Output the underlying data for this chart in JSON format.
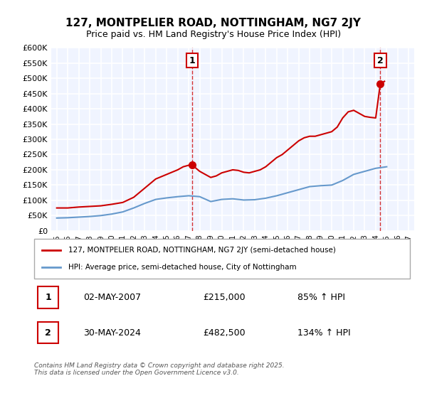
{
  "title": "127, MONTPELIER ROAD, NOTTINGHAM, NG7 2JY",
  "subtitle": "Price paid vs. HM Land Registry's House Price Index (HPI)",
  "legend_line1": "127, MONTPELIER ROAD, NOTTINGHAM, NG7 2JY (semi-detached house)",
  "legend_line2": "HPI: Average price, semi-detached house, City of Nottingham",
  "annotation1_label": "1",
  "annotation1_date": "02-MAY-2007",
  "annotation1_price": "£215,000",
  "annotation1_hpi": "85% ↑ HPI",
  "annotation2_label": "2",
  "annotation2_date": "30-MAY-2024",
  "annotation2_price": "£482,500",
  "annotation2_hpi": "134% ↑ HPI",
  "footer": "Contains HM Land Registry data © Crown copyright and database right 2025.\nThis data is licensed under the Open Government Licence v3.0.",
  "red_color": "#cc0000",
  "blue_color": "#6699cc",
  "background_color": "#f0f4ff",
  "grid_color": "#ffffff",
  "ylim": [
    0,
    600000
  ],
  "xlim_start": 1994.5,
  "xlim_end": 2027.5,
  "vline1_x": 2007.33,
  "vline2_x": 2024.42,
  "marker1_x": 2007.33,
  "marker1_y": 215000,
  "marker2_x": 2024.42,
  "marker2_y": 482500,
  "red_hpi_x": [
    1995,
    1996,
    1997,
    1998,
    1999,
    2000,
    2001,
    2002,
    2003,
    2004,
    2005,
    2006,
    2006.5,
    2007,
    2007.33,
    2007.5,
    2008,
    2008.5,
    2009,
    2009.5,
    2010,
    2010.5,
    2011,
    2011.5,
    2012,
    2012.5,
    2013,
    2013.5,
    2014,
    2014.5,
    2015,
    2015.5,
    2016,
    2016.5,
    2017,
    2017.5,
    2018,
    2018.5,
    2019,
    2019.5,
    2020,
    2020.5,
    2021,
    2021.5,
    2022,
    2022.5,
    2023,
    2023.5,
    2024,
    2024.42,
    2024.8
  ],
  "red_hpi_y": [
    75000,
    75000,
    78000,
    80000,
    82000,
    87000,
    93000,
    110000,
    140000,
    170000,
    185000,
    200000,
    210000,
    215000,
    215000,
    210000,
    195000,
    185000,
    175000,
    180000,
    190000,
    195000,
    200000,
    198000,
    192000,
    190000,
    195000,
    200000,
    210000,
    225000,
    240000,
    250000,
    265000,
    280000,
    295000,
    305000,
    310000,
    310000,
    315000,
    320000,
    325000,
    340000,
    370000,
    390000,
    395000,
    385000,
    375000,
    372000,
    370000,
    482500,
    490000
  ],
  "blue_hpi_x": [
    1995,
    1996,
    1997,
    1998,
    1999,
    2000,
    2001,
    2002,
    2003,
    2004,
    2005,
    2006,
    2007,
    2008,
    2009,
    2010,
    2011,
    2012,
    2013,
    2014,
    2015,
    2016,
    2017,
    2018,
    2019,
    2020,
    2021,
    2022,
    2023,
    2024,
    2025
  ],
  "blue_hpi_y": [
    42000,
    43000,
    45000,
    47000,
    50000,
    55000,
    62000,
    75000,
    90000,
    103000,
    108000,
    112000,
    115000,
    112000,
    96000,
    103000,
    105000,
    101000,
    102000,
    107000,
    115000,
    125000,
    135000,
    145000,
    148000,
    150000,
    165000,
    185000,
    195000,
    205000,
    210000
  ]
}
